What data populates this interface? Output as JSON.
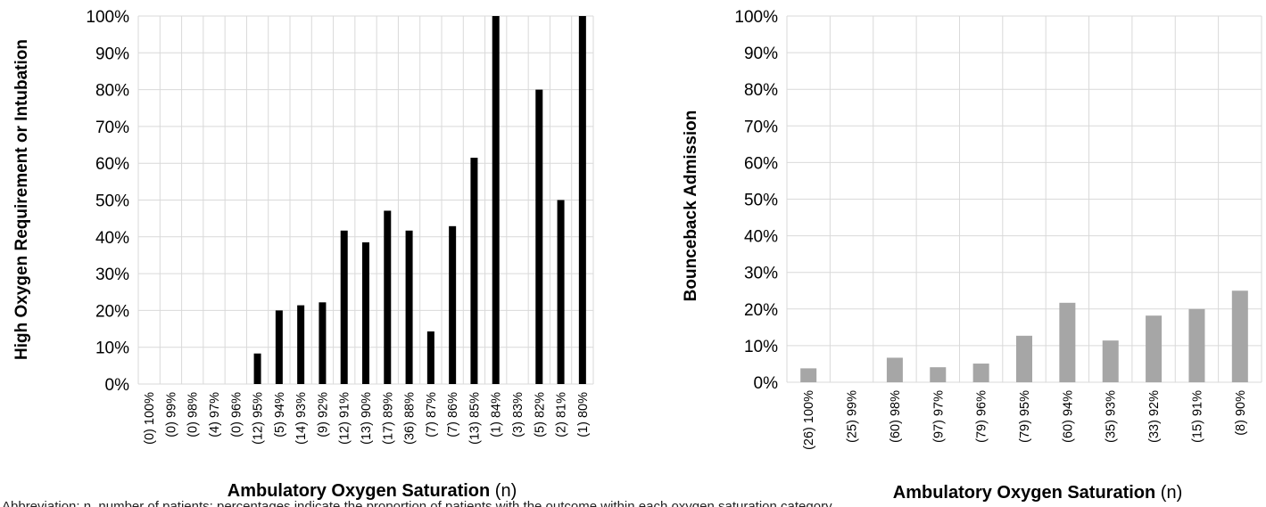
{
  "chart_data": [
    {
      "type": "bar",
      "title": "",
      "ylabel": "High Oxygen Requirement or Intubation",
      "xlabel_bold": "Ambulatory  Oxygen Saturation",
      "xlabel_suffix": " (n)",
      "ylim": [
        0,
        100
      ],
      "y_ticks": [
        "0%",
        "10%",
        "20%",
        "30%",
        "40%",
        "50%",
        "60%",
        "70%",
        "80%",
        "90%",
        "100%"
      ],
      "grid": true,
      "bar_color": "#000000",
      "categories": [
        "(0) 100%",
        "(0) 99%",
        "(0) 98%",
        "(4) 97%",
        "(0) 96%",
        "(12) 95%",
        "(5) 94%",
        "(14) 93%",
        "(9) 92%",
        "(12) 91%",
        "(13) 90%",
        "(17) 89%",
        "(36) 88%",
        "(7) 87%",
        "(7) 86%",
        "(13) 85%",
        "(1) 84%",
        "(3) 83%",
        "(5) 82%",
        "(2) 81%",
        "(1) 80%"
      ],
      "values": [
        0,
        0,
        0,
        0,
        0,
        8.3,
        20,
        21.4,
        22.2,
        41.7,
        38.5,
        47.1,
        41.7,
        14.3,
        42.9,
        61.5,
        100,
        0,
        80,
        50,
        100
      ]
    },
    {
      "type": "bar",
      "title": "",
      "ylabel": "Bounceback Admission",
      "xlabel_bold": "Ambulatory  Oxygen Saturation",
      "xlabel_suffix": " (n)",
      "ylim": [
        0,
        100
      ],
      "y_ticks": [
        "0%",
        "10%",
        "20%",
        "30%",
        "40%",
        "50%",
        "60%",
        "70%",
        "80%",
        "90%",
        "100%"
      ],
      "grid": true,
      "bar_color": "#a6a6a6",
      "categories": [
        "(26) 100%",
        "(25) 99%",
        "(60) 98%",
        "(97) 97%",
        "(79) 96%",
        "(79) 95%",
        "(60) 94%",
        "(35) 93%",
        "(33) 92%",
        "(15) 91%",
        "(8) 90%"
      ],
      "values": [
        3.8,
        0,
        6.7,
        4.1,
        5.1,
        12.7,
        21.7,
        11.4,
        18.2,
        20,
        25
      ]
    }
  ],
  "footnote": "Abbreviation: n, number of patients; percentages indicate the proportion of patients with the outcome within each oxygen saturation category."
}
